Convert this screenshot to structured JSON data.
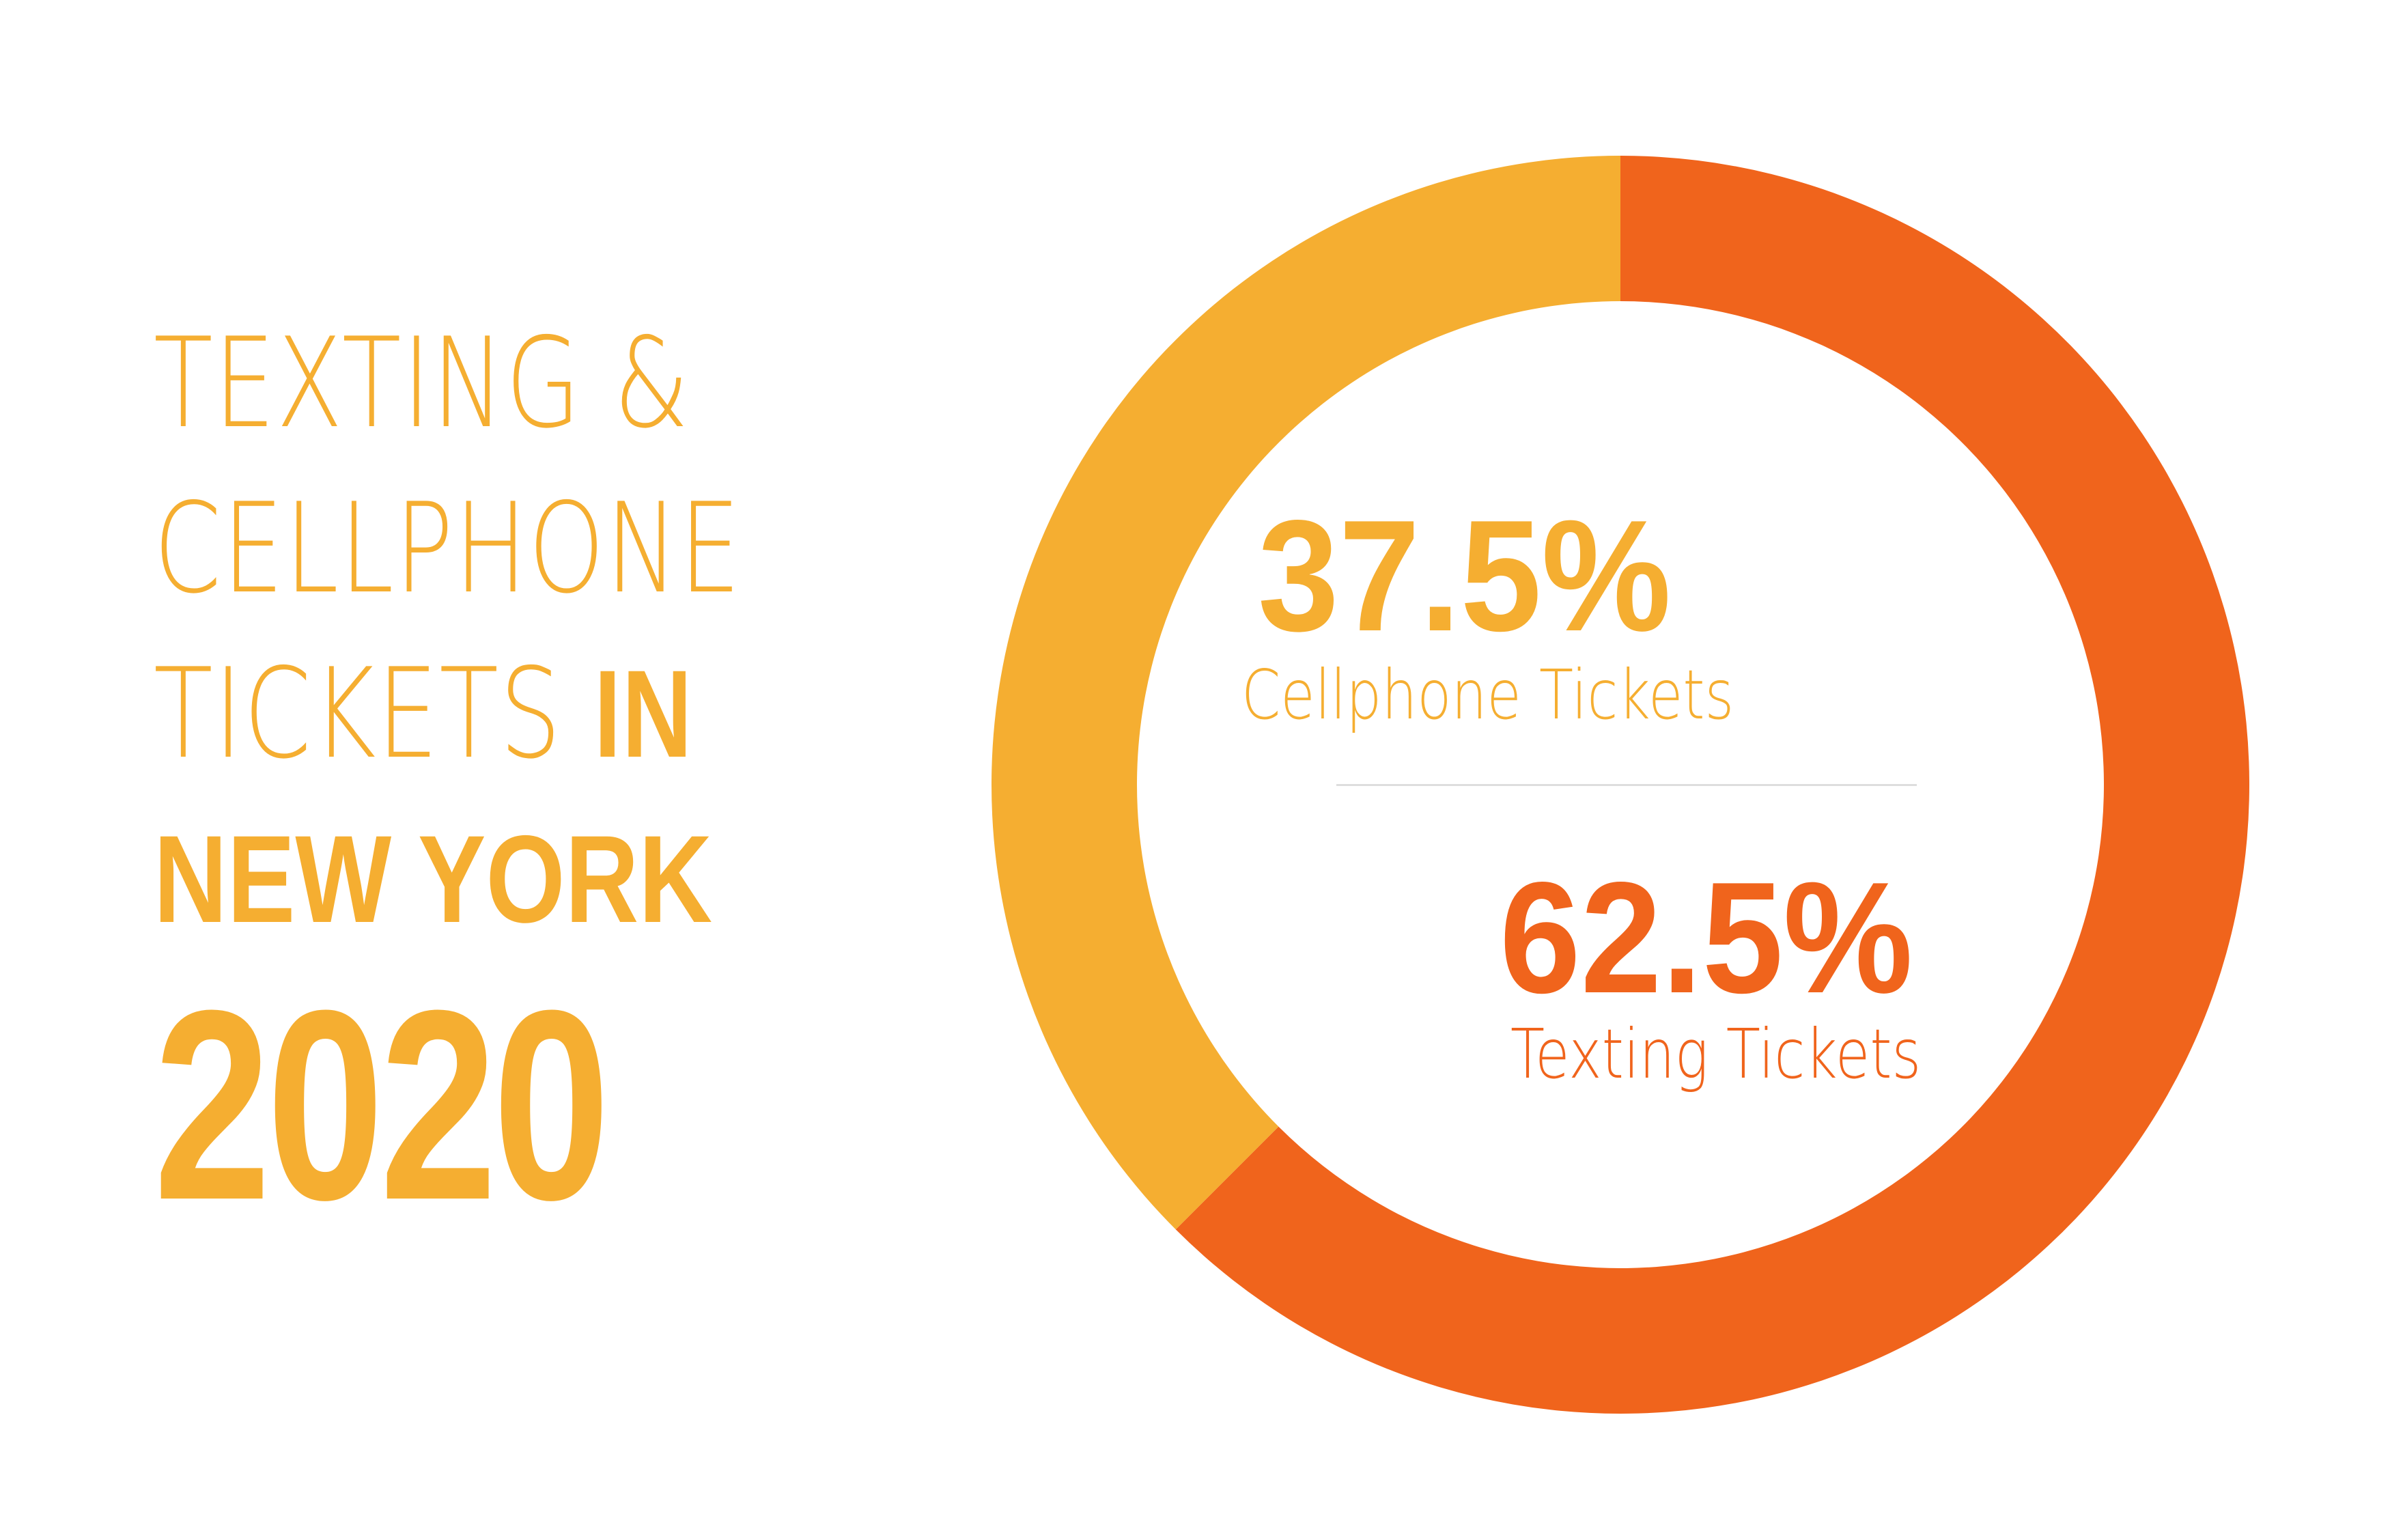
{
  "title": {
    "line1": "TEXTING &",
    "line2": "CELLPHONE",
    "line3_light": "TICKETS",
    "line3_bold": "IN",
    "line4": "NEW YORK",
    "line5": "2020"
  },
  "colors": {
    "cellphone": "#f5ae31",
    "texting": "#f0641c",
    "divider": "#dedede",
    "background": "#ffffff"
  },
  "chart_data": {
    "type": "pie",
    "donut": true,
    "title": "TEXTING & CELLPHONE TICKETS IN NEW YORK 2020",
    "series": [
      {
        "name": "Cellphone Tickets",
        "value": 37.5,
        "label": "37.5%"
      },
      {
        "name": "Texting Tickets",
        "value": 62.5,
        "label": "62.5%"
      }
    ]
  }
}
